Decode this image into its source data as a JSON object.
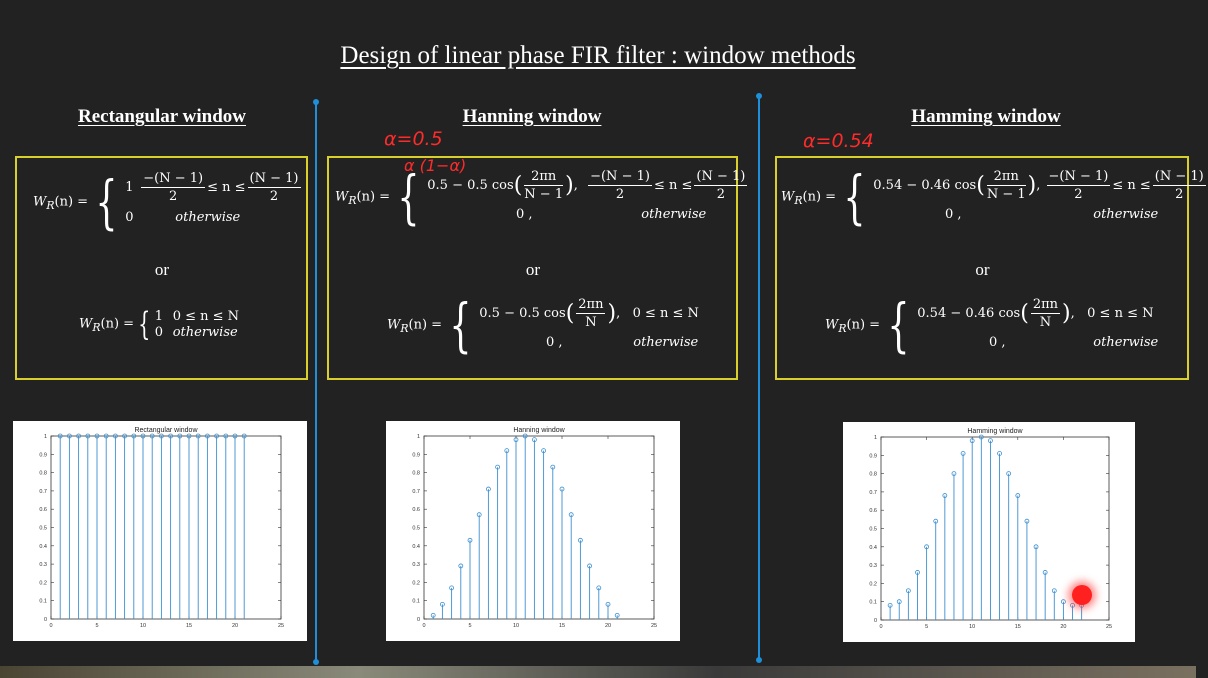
{
  "title": "Design of linear phase FIR filter : window methods",
  "columns": [
    {
      "heading": "Rectangular window",
      "eq1": {
        "lhs": "W",
        "sub": "R",
        "arg": "(n) =",
        "case1": "1",
        "case1_cond_num_left": "−(N − 1)",
        "case1_cond_den_left": "2",
        "case1_cond_mid": "≤ n ≤",
        "case1_cond_num_right": "(N − 1)",
        "case1_cond_den_right": "2",
        "case2": "0",
        "case2_cond": "otherwise"
      },
      "or": "or",
      "eq2": {
        "lhs": "W",
        "sub": "R",
        "arg": "(n) =",
        "case1": "1",
        "case1_cond": "0 ≤ n ≤ N",
        "case2": "0",
        "case2_cond": "otherwise"
      }
    },
    {
      "heading": "Hanning window",
      "eq1": {
        "lhs": "W",
        "sub": "R",
        "arg": "(n) =",
        "case1": "0.5 − 0.5 cos",
        "frac_num": "2πn",
        "frac_den": "N − 1",
        "case1_cond_num_left": "−(N − 1)",
        "case1_cond_den_left": "2",
        "case1_cond_mid": "≤ n ≤",
        "case1_cond_num_right": "(N − 1)",
        "case1_cond_den_right": "2",
        "case2": "0 ,",
        "case2_cond": "otherwise"
      },
      "or": "or",
      "eq2": {
        "lhs": "W",
        "sub": "R",
        "arg": "(n) =",
        "case1": "0.5 − 0.5 cos",
        "frac_num": "2πn",
        "frac_den": "N",
        "case1_cond": "0 ≤ n ≤ N",
        "case2": "0 ,",
        "case2_cond": "otherwise"
      },
      "annotations": [
        "α=0.5",
        "α (1−α)"
      ]
    },
    {
      "heading": "Hamming window",
      "eq1": {
        "lhs": "W",
        "sub": "R",
        "arg": "(n) =",
        "case1": "0.54 − 0.46 cos",
        "frac_num": "2πn",
        "frac_den": "N − 1",
        "case1_cond_num_left": "−(N − 1)",
        "case1_cond_den_left": "2",
        "case1_cond_mid": "≤ n ≤",
        "case1_cond_num_right": "(N − 1)",
        "case1_cond_den_right": "2",
        "case2": "0 ,",
        "case2_cond": "otherwise"
      },
      "or": "or",
      "eq2": {
        "lhs": "W",
        "sub": "R",
        "arg": "(n) =",
        "case1": "0.54 − 0.46 cos",
        "frac_num": "2πn",
        "frac_den": "N",
        "case1_cond": "0 ≤ n ≤ N",
        "case2": "0 ,",
        "case2_cond": "otherwise"
      },
      "annotations": [
        "α=0.54"
      ]
    }
  ],
  "colors": {
    "background": "#222222",
    "box_border": "#d8cf2c",
    "divider": "#1e8fd8",
    "stem": "#3b8fd0",
    "annotation": "#ff2a2a"
  },
  "chart_data": [
    {
      "type": "stem",
      "title": "Rectangular window",
      "x": [
        1,
        2,
        3,
        4,
        5,
        6,
        7,
        8,
        9,
        10,
        11,
        12,
        13,
        14,
        15,
        16,
        17,
        18,
        19,
        20,
        21
      ],
      "y": [
        1,
        1,
        1,
        1,
        1,
        1,
        1,
        1,
        1,
        1,
        1,
        1,
        1,
        1,
        1,
        1,
        1,
        1,
        1,
        1,
        1
      ],
      "xlim": [
        0,
        25
      ],
      "ylim": [
        0,
        1
      ],
      "xticks": [
        0,
        5,
        10,
        15,
        20,
        25
      ],
      "yticks": [
        0,
        0.1,
        0.2,
        0.3,
        0.4,
        0.5,
        0.6,
        0.7,
        0.8,
        0.9,
        1
      ]
    },
    {
      "type": "stem",
      "title": "Hanning window",
      "x": [
        1,
        2,
        3,
        4,
        5,
        6,
        7,
        8,
        9,
        10,
        11,
        12,
        13,
        14,
        15,
        16,
        17,
        18,
        19,
        20,
        21
      ],
      "y": [
        0.02,
        0.08,
        0.17,
        0.29,
        0.43,
        0.57,
        0.71,
        0.83,
        0.92,
        0.98,
        1.0,
        0.98,
        0.92,
        0.83,
        0.71,
        0.57,
        0.43,
        0.29,
        0.17,
        0.08,
        0.02
      ],
      "xlim": [
        0,
        25
      ],
      "ylim": [
        0,
        1
      ],
      "xticks": [
        0,
        5,
        10,
        15,
        20,
        25
      ],
      "yticks": [
        0,
        0.1,
        0.2,
        0.3,
        0.4,
        0.5,
        0.6,
        0.7,
        0.8,
        0.9,
        1
      ]
    },
    {
      "type": "stem",
      "title": "Hamming window",
      "x": [
        1,
        2,
        3,
        4,
        5,
        6,
        7,
        8,
        9,
        10,
        11,
        12,
        13,
        14,
        15,
        16,
        17,
        18,
        19,
        20,
        21,
        22
      ],
      "y": [
        0.08,
        0.1,
        0.16,
        0.26,
        0.4,
        0.54,
        0.68,
        0.8,
        0.91,
        0.98,
        1.0,
        0.98,
        0.91,
        0.8,
        0.68,
        0.54,
        0.4,
        0.26,
        0.16,
        0.1,
        0.08,
        0.08
      ],
      "xlim": [
        0,
        25
      ],
      "ylim": [
        0,
        1
      ],
      "xticks": [
        0,
        5,
        10,
        15,
        20,
        25
      ],
      "yticks": [
        0,
        0.1,
        0.2,
        0.3,
        0.4,
        0.5,
        0.6,
        0.7,
        0.8,
        0.9,
        1
      ]
    }
  ]
}
